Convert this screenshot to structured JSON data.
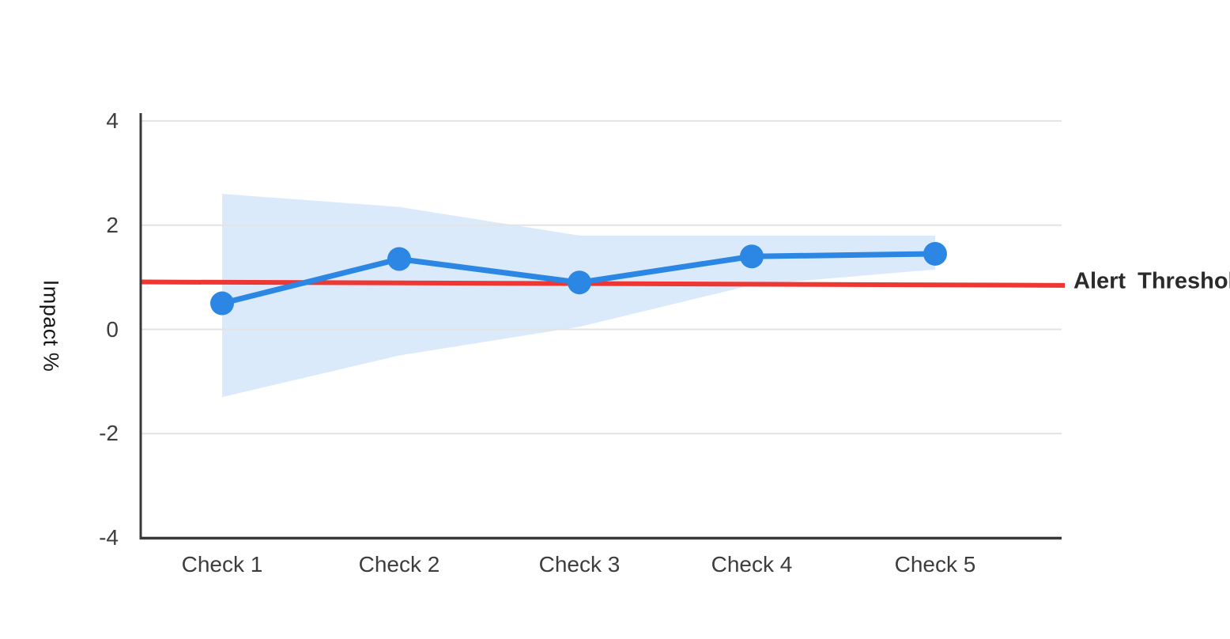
{
  "page": {
    "background": "#ffffff",
    "title_visible": false
  },
  "chart_data": {
    "type": "line",
    "categories": [
      "Check 1",
      "Check 2",
      "Check 3",
      "Check 4",
      "Check 5"
    ],
    "series": [
      {
        "name": "impact",
        "type": "line+markers",
        "color": "#2b87e3",
        "values": [
          0.5,
          1.35,
          0.9,
          1.4,
          1.45
        ]
      },
      {
        "name": "confidence-band",
        "type": "area-band",
        "color": "#dbeafb",
        "upper": [
          2.6,
          2.35,
          1.8,
          1.8,
          1.8
        ],
        "lower": [
          -1.3,
          -0.5,
          0.05,
          0.85,
          1.15
        ]
      },
      {
        "name": "alert-threshold",
        "type": "line",
        "color": "#ee3733",
        "values": [
          0.91,
          0.89,
          0.88,
          0.86,
          0.85
        ],
        "start_value": 0.91,
        "end_value": 0.845,
        "label": "Alert Threshold"
      }
    ],
    "ylabel": "Impact %",
    "xlabel": "",
    "yticks": [
      4,
      2,
      0,
      -2,
      -4
    ],
    "ylim": [
      -4,
      4
    ],
    "grid": true,
    "legend": false,
    "annotations": [
      {
        "text": "Alert Threshold",
        "position": "right of threshold line",
        "style": "bold"
      }
    ],
    "colors": {
      "grid": "#e3e3e3",
      "axis": "#383838",
      "tick_text": "#3d3d3d"
    }
  }
}
